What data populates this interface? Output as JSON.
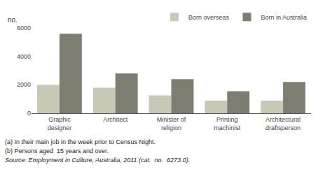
{
  "chart_data": {
    "type": "bar",
    "categories": [
      "Graphic\ndesigner",
      "Architect",
      "Minister of\nreligion",
      "Printing\nmachinist",
      "Architectural\ndraftsperson"
    ],
    "series": [
      {
        "name": "Born overseas",
        "color": "#c8c8b4",
        "values": [
          2000,
          1800,
          1250,
          900,
          900
        ]
      },
      {
        "name": "Born in Australia",
        "color": "#7d7d72",
        "values": [
          5600,
          2800,
          2400,
          1550,
          2200
        ]
      }
    ],
    "ylabel": "no.",
    "ylim": [
      0,
      6000
    ],
    "yticks": [
      0,
      2000,
      4000,
      6000
    ],
    "grid": false,
    "legend": "upper right",
    "footnotes": [
      "(a) In their main job in the week prior to Census Night.",
      "(b) Persons aged  15 years and over."
    ],
    "source": "Source: Employment in Culture, Australia, 2011 (cat.  no.  6273.0)."
  }
}
